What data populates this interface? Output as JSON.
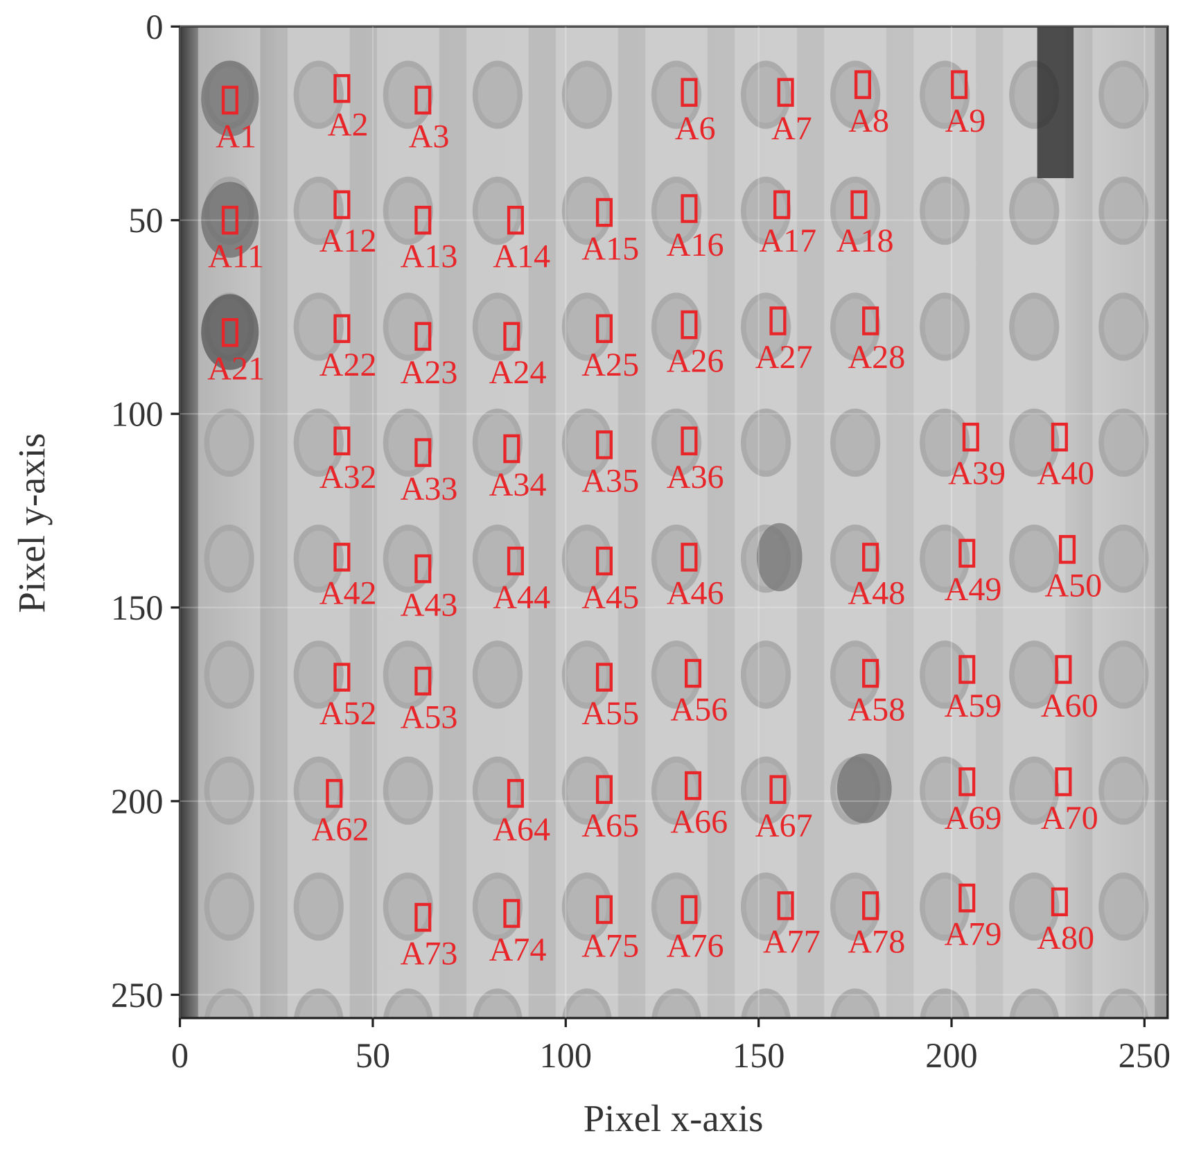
{
  "chart_data": {
    "type": "annotated_image",
    "xlabel": "Pixel x-axis",
    "ylabel": "Pixel y-axis",
    "xlim": [
      0,
      256
    ],
    "ylim": [
      256,
      0
    ],
    "xticks": [
      0,
      50,
      100,
      150,
      200,
      250
    ],
    "yticks": [
      0,
      50,
      100,
      150,
      200,
      250
    ],
    "grid": true,
    "color": "#e8262a",
    "annotations": [
      {
        "label": "A1",
        "x": 13,
        "y": 19
      },
      {
        "label": "A2",
        "x": 42,
        "y": 16
      },
      {
        "label": "A3",
        "x": 63,
        "y": 19
      },
      {
        "label": "A6",
        "x": 132,
        "y": 17
      },
      {
        "label": "A7",
        "x": 157,
        "y": 17
      },
      {
        "label": "A8",
        "x": 177,
        "y": 15
      },
      {
        "label": "A9",
        "x": 202,
        "y": 15
      },
      {
        "label": "A11",
        "x": 13,
        "y": 50
      },
      {
        "label": "A12",
        "x": 42,
        "y": 46
      },
      {
        "label": "A13",
        "x": 63,
        "y": 50
      },
      {
        "label": "A14",
        "x": 87,
        "y": 50
      },
      {
        "label": "A15",
        "x": 110,
        "y": 48
      },
      {
        "label": "A16",
        "x": 132,
        "y": 47
      },
      {
        "label": "A17",
        "x": 156,
        "y": 46
      },
      {
        "label": "A18",
        "x": 176,
        "y": 46
      },
      {
        "label": "A21",
        "x": 13,
        "y": 79
      },
      {
        "label": "A22",
        "x": 42,
        "y": 78
      },
      {
        "label": "A23",
        "x": 63,
        "y": 80
      },
      {
        "label": "A24",
        "x": 86,
        "y": 80
      },
      {
        "label": "A25",
        "x": 110,
        "y": 78
      },
      {
        "label": "A26",
        "x": 132,
        "y": 77
      },
      {
        "label": "A27",
        "x": 155,
        "y": 76
      },
      {
        "label": "A28",
        "x": 179,
        "y": 76
      },
      {
        "label": "A32",
        "x": 42,
        "y": 107
      },
      {
        "label": "A33",
        "x": 63,
        "y": 110
      },
      {
        "label": "A34",
        "x": 86,
        "y": 109
      },
      {
        "label": "A35",
        "x": 110,
        "y": 108
      },
      {
        "label": "A36",
        "x": 132,
        "y": 107
      },
      {
        "label": "A39",
        "x": 205,
        "y": 106
      },
      {
        "label": "A40",
        "x": 228,
        "y": 106
      },
      {
        "label": "A42",
        "x": 42,
        "y": 137
      },
      {
        "label": "A43",
        "x": 63,
        "y": 140
      },
      {
        "label": "A44",
        "x": 87,
        "y": 138
      },
      {
        "label": "A45",
        "x": 110,
        "y": 138
      },
      {
        "label": "A46",
        "x": 132,
        "y": 137
      },
      {
        "label": "A48",
        "x": 179,
        "y": 137
      },
      {
        "label": "A49",
        "x": 204,
        "y": 136
      },
      {
        "label": "A50",
        "x": 230,
        "y": 135
      },
      {
        "label": "A52",
        "x": 42,
        "y": 168
      },
      {
        "label": "A53",
        "x": 63,
        "y": 169
      },
      {
        "label": "A55",
        "x": 110,
        "y": 168
      },
      {
        "label": "A56",
        "x": 133,
        "y": 167
      },
      {
        "label": "A58",
        "x": 179,
        "y": 167
      },
      {
        "label": "A59",
        "x": 204,
        "y": 166
      },
      {
        "label": "A60",
        "x": 229,
        "y": 166
      },
      {
        "label": "A62",
        "x": 40,
        "y": 198
      },
      {
        "label": "A64",
        "x": 87,
        "y": 198
      },
      {
        "label": "A65",
        "x": 110,
        "y": 197
      },
      {
        "label": "A66",
        "x": 133,
        "y": 196
      },
      {
        "label": "A67",
        "x": 155,
        "y": 197
      },
      {
        "label": "A69",
        "x": 204,
        "y": 195
      },
      {
        "label": "A70",
        "x": 229,
        "y": 195
      },
      {
        "label": "A73",
        "x": 63,
        "y": 230
      },
      {
        "label": "A74",
        "x": 86,
        "y": 229
      },
      {
        "label": "A75",
        "x": 110,
        "y": 228
      },
      {
        "label": "A76",
        "x": 132,
        "y": 228
      },
      {
        "label": "A77",
        "x": 157,
        "y": 227
      },
      {
        "label": "A78",
        "x": 179,
        "y": 227
      },
      {
        "label": "A79",
        "x": 204,
        "y": 225
      },
      {
        "label": "A80",
        "x": 228,
        "y": 226
      }
    ]
  }
}
